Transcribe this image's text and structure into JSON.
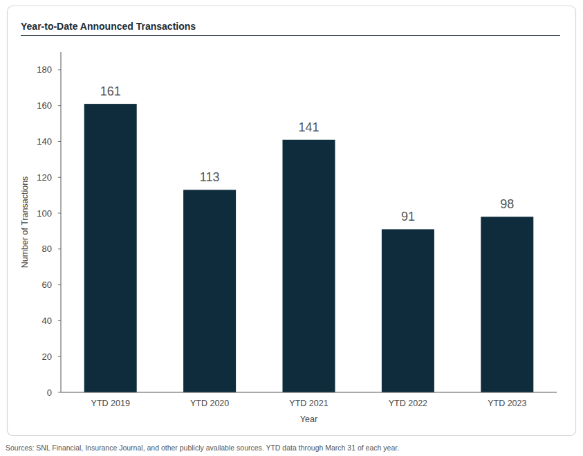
{
  "chart_data": {
    "type": "bar",
    "title": "Year-to-Date Announced Transactions",
    "categories": [
      "YTD 2019",
      "YTD 2020",
      "YTD 2021",
      "YTD 2022",
      "YTD 2023"
    ],
    "values": [
      161,
      113,
      141,
      91,
      98
    ],
    "color": "#0e2c3c",
    "ylim": [
      0,
      190
    ],
    "yticks": [
      0,
      20,
      40,
      60,
      80,
      100,
      120,
      140,
      160,
      180
    ],
    "x_label": "Year",
    "y_label": "Number of Transactions",
    "data_labels": true,
    "grid": false,
    "source": "Sources: SNL Financial, Insurance Journal, and other publicly available sources. YTD data through March 31 of each year."
  }
}
